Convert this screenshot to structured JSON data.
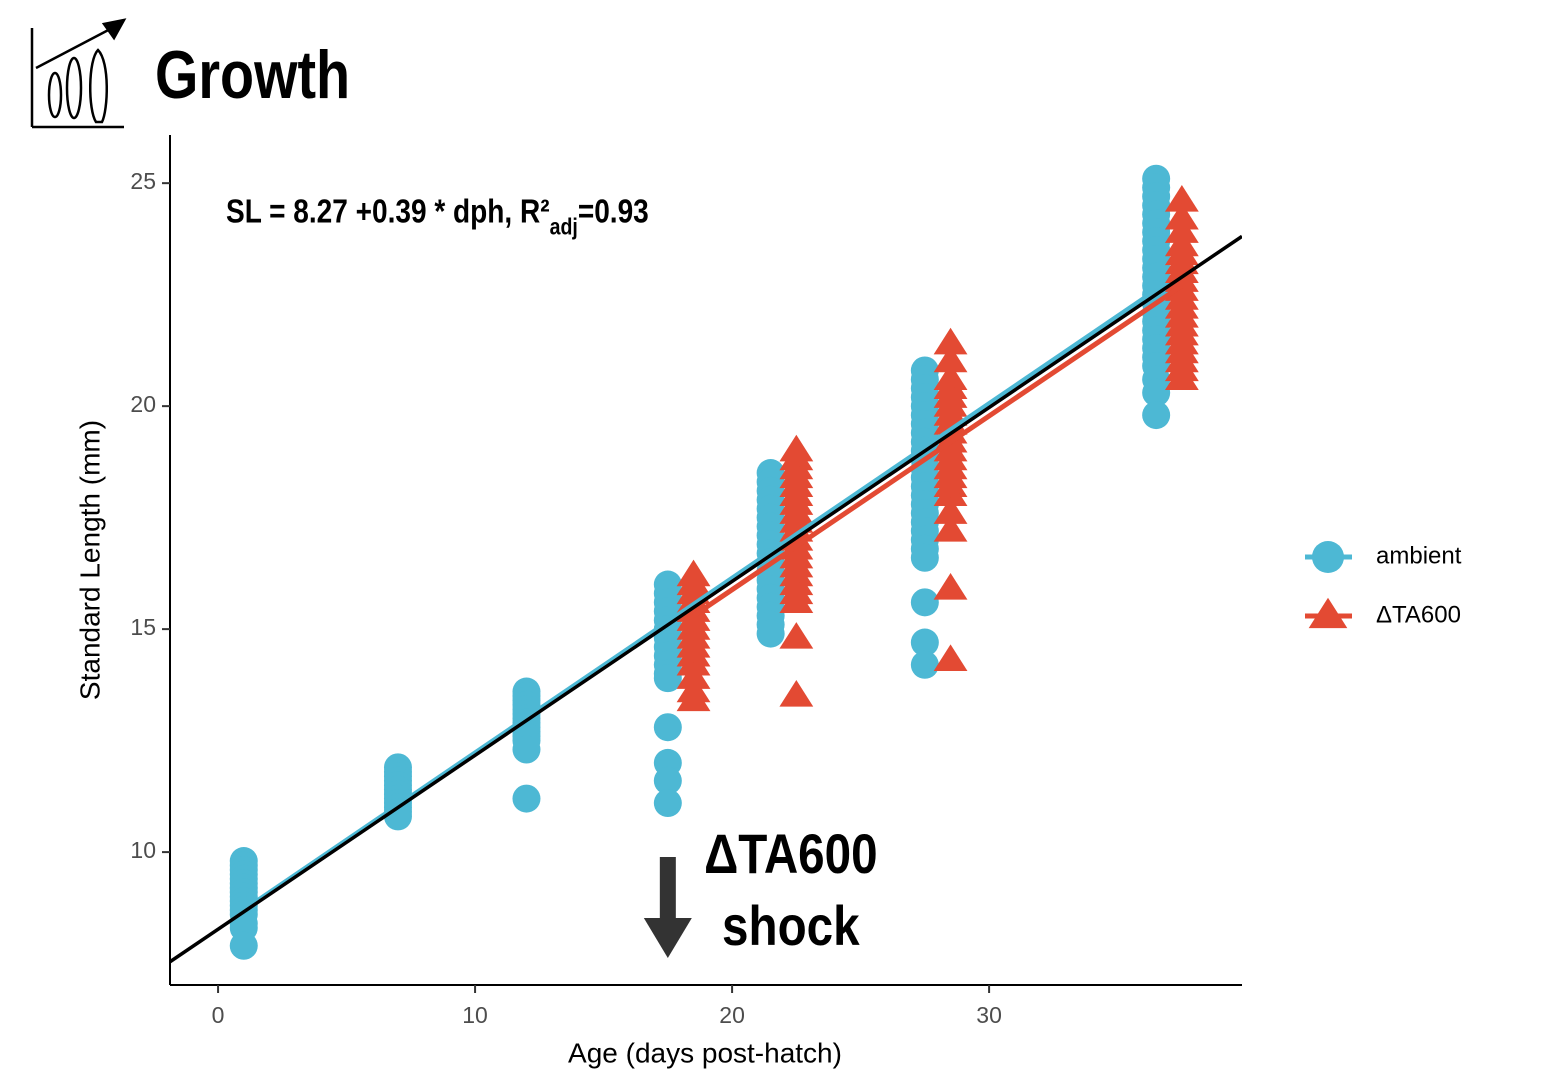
{
  "chart_data": {
    "type": "scatter",
    "title": "Growth",
    "x_label": "Age (days post-hatch)",
    "y_label": "Standard Length (mm)",
    "xlim": [
      -1.87,
      39.84
    ],
    "ylim": [
      7.02,
      26.08
    ],
    "xticks": [
      0,
      10,
      20,
      30
    ],
    "yticks": [
      10,
      15,
      20,
      25
    ],
    "grid": false,
    "legend": "right",
    "equation": {
      "main": "SL = 8.27 +0.39 * dph,  R²",
      "sub": "adj",
      "tail": "=0.93"
    },
    "overall_fit": {
      "intercept": 8.27,
      "slope": 0.39,
      "color": "#000000"
    },
    "annotation": {
      "lines": [
        "ΔTA600",
        "shock"
      ],
      "x": 17.5
    },
    "series": [
      {
        "name": "ambient",
        "color": "#4db8d4",
        "marker": "circle",
        "fit": {
          "x": [
            1,
            36.5
          ],
          "values": [
            8.7,
            22.6
          ]
        },
        "groups": [
          {
            "x": 1,
            "values": [
              9.8,
              9.7,
              9.6,
              9.5,
              9.4,
              9.3,
              9.2,
              9.1,
              9.0,
              8.9,
              8.8,
              8.7,
              8.6,
              8.4,
              8.3,
              7.9
            ]
          },
          {
            "x": 7,
            "values": [
              11.9,
              11.8,
              11.7,
              11.6,
              11.5,
              11.4,
              11.3,
              11.2,
              11.1,
              11.0,
              10.9,
              10.8
            ]
          },
          {
            "x": 12,
            "values": [
              13.6,
              13.5,
              13.4,
              13.3,
              13.2,
              13.1,
              13.0,
              12.9,
              12.8,
              12.7,
              12.6,
              12.5,
              12.3,
              11.2
            ]
          },
          {
            "x": 17.5,
            "values": [
              16.0,
              15.8,
              15.6,
              15.4,
              15.2,
              15.0,
              14.8,
              14.6,
              14.4,
              14.2,
              14.0,
              13.9,
              12.8,
              12.0,
              11.6,
              11.1
            ]
          },
          {
            "x": 21.5,
            "values": [
              18.5,
              18.3,
              18.1,
              17.9,
              17.7,
              17.5,
              17.3,
              17.1,
              16.9,
              16.7,
              16.5,
              16.3,
              16.1,
              15.9,
              15.7,
              15.5,
              15.3,
              15.1,
              14.9
            ]
          },
          {
            "x": 27.5,
            "values": [
              20.8,
              20.6,
              20.4,
              20.2,
              20.0,
              19.8,
              19.6,
              19.4,
              19.2,
              19.0,
              18.8,
              18.6,
              18.4,
              18.2,
              18.0,
              17.8,
              17.6,
              17.4,
              17.2,
              17.0,
              16.8,
              16.6,
              15.6,
              14.7,
              14.2
            ]
          },
          {
            "x": 36.5,
            "values": [
              25.1,
              24.9,
              24.7,
              24.5,
              24.3,
              24.1,
              23.9,
              23.7,
              23.5,
              23.3,
              23.1,
              22.9,
              22.7,
              22.5,
              22.3,
              22.1,
              21.9,
              21.7,
              21.5,
              21.3,
              21.1,
              20.9,
              20.6,
              20.3,
              19.8
            ]
          }
        ]
      },
      {
        "name": "ΔTA600",
        "color": "#e34a33",
        "marker": "triangle",
        "fit": {
          "x": [
            18.5,
            37.5
          ],
          "values": [
            15.3,
            22.7
          ]
        },
        "groups": [
          {
            "x": 18.5,
            "values": [
              16.2,
              16.0,
              15.8,
              15.6,
              15.4,
              15.2,
              15.0,
              14.8,
              14.6,
              14.4,
              14.2,
              13.9,
              13.6,
              13.4
            ]
          },
          {
            "x": 22.5,
            "values": [
              19.0,
              18.8,
              18.6,
              18.4,
              18.2,
              18.0,
              17.8,
              17.6,
              17.4,
              17.2,
              17.0,
              16.8,
              16.6,
              16.4,
              16.2,
              16.0,
              15.8,
              15.6,
              14.8,
              13.5
            ]
          },
          {
            "x": 28.5,
            "values": [
              21.4,
              21.0,
              20.6,
              20.4,
              20.2,
              20.0,
              19.8,
              19.6,
              19.4,
              19.2,
              19.0,
              18.8,
              18.6,
              18.4,
              18.2,
              18.0,
              17.6,
              17.2,
              15.9,
              14.3
            ]
          },
          {
            "x": 37.5,
            "values": [
              24.6,
              24.2,
              23.9,
              23.6,
              23.4,
              23.2,
              23.0,
              22.8,
              22.6,
              22.4,
              22.2,
              22.0,
              21.8,
              21.6,
              21.4,
              21.2,
              21.0,
              20.8,
              20.6
            ]
          }
        ]
      }
    ]
  }
}
